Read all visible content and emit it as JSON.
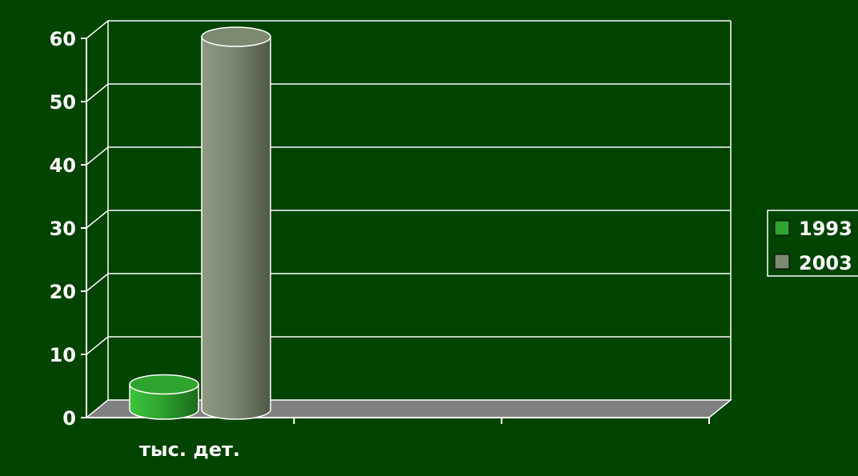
{
  "chart_data": {
    "type": "bar",
    "style": "3d-cylinder",
    "categories": [
      "тыс. дет."
    ],
    "series": [
      {
        "name": "1993",
        "values": [
          5
        ],
        "color": "#2fa42f"
      },
      {
        "name": "2003",
        "values": [
          60
        ],
        "color": "#7c8a70"
      }
    ],
    "ylim": [
      0,
      60
    ],
    "yticks": [
      0,
      10,
      20,
      30,
      40,
      50,
      60
    ],
    "xlabel": "",
    "ylabel": "",
    "grid": true,
    "legend_position": "right",
    "colors": {
      "background": "#004400",
      "plot_background": "#004400",
      "floor": "#808080",
      "gridline": "#ffffff",
      "text": "#ffffff"
    }
  }
}
